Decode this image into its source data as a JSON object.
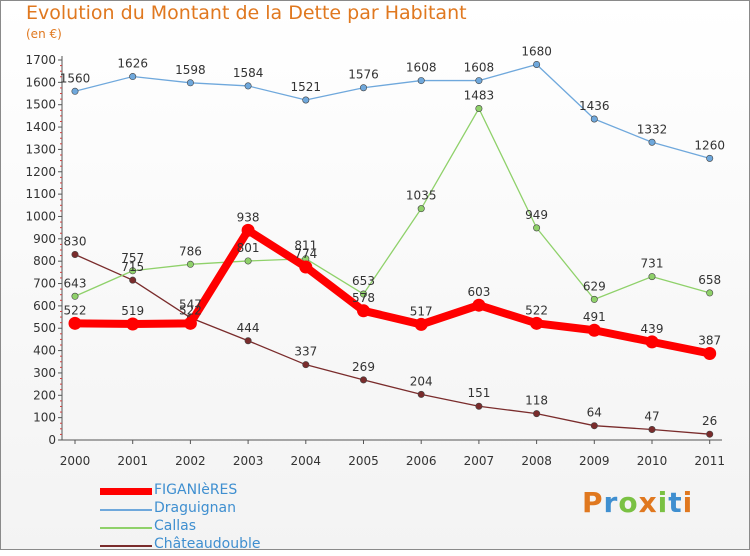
{
  "header": {
    "title": "Evolution du Montant de la Dette par Habitant",
    "subtitle": "(en €)"
  },
  "logo": {
    "text": "Proxiti",
    "colors": [
      "#e0781f",
      "#3f8fd0",
      "#7ac143",
      "#e0781f",
      "#7ac143",
      "#3f8fd0",
      "#e0781f"
    ]
  },
  "chart_data": {
    "type": "line",
    "x": [
      "2000",
      "2001",
      "2002",
      "2003",
      "2004",
      "2005",
      "2006",
      "2007",
      "2008",
      "2009",
      "2010",
      "2011"
    ],
    "ylim": [
      0,
      1700
    ],
    "yticks": [
      0,
      100,
      200,
      300,
      400,
      500,
      600,
      700,
      800,
      900,
      1000,
      1100,
      1200,
      1300,
      1400,
      1500,
      1600,
      1700
    ],
    "grid": false,
    "legend": "bottom-left",
    "series": [
      {
        "name": "FIGANIèRES",
        "color": "#ff0000",
        "values": [
          522,
          519,
          522,
          938,
          774,
          578,
          517,
          603,
          522,
          491,
          439,
          387
        ]
      },
      {
        "name": "Draguignan",
        "color": "#6fa8dc",
        "values": [
          1560,
          1626,
          1598,
          1584,
          1521,
          1576,
          1608,
          1608,
          1680,
          1436,
          1332,
          1260
        ]
      },
      {
        "name": "Callas",
        "color": "#8fd16a",
        "values": [
          643,
          757,
          786,
          801,
          811,
          653,
          1035,
          1483,
          949,
          629,
          731,
          658
        ]
      },
      {
        "name": "Châteaudouble",
        "color": "#7a2c2c",
        "values": [
          830,
          715,
          547,
          444,
          337,
          269,
          204,
          151,
          118,
          64,
          47,
          26
        ]
      }
    ]
  }
}
